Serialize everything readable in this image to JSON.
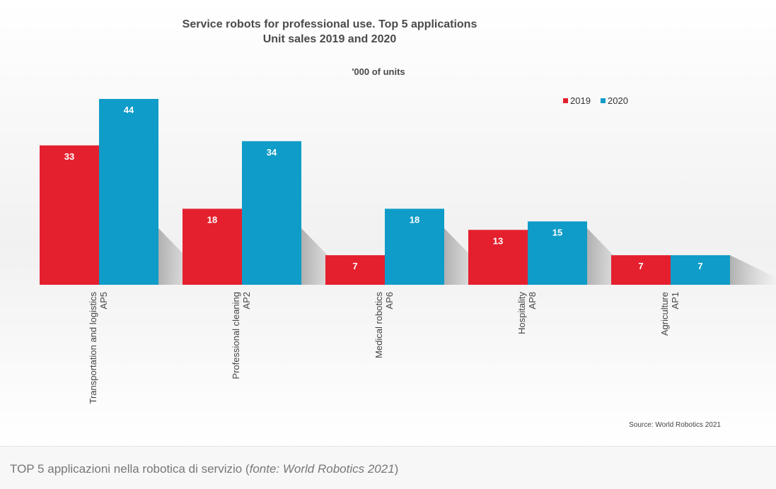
{
  "chart_data": {
    "type": "bar",
    "title": "Service robots for professional use. Top 5 applications",
    "subtitle": "Unit sales 2019 and 2020",
    "unit_label": "'000 of units",
    "categories": [
      [
        "Transportation and logistics",
        "AP5"
      ],
      [
        "Professional cleaning",
        "AP2"
      ],
      [
        "Medical robotics",
        "AP6"
      ],
      [
        "Hospitality",
        "AP8"
      ],
      [
        "Agriculture",
        "AP1"
      ]
    ],
    "series": [
      {
        "name": "2019",
        "color": "#e4202e",
        "values": [
          33,
          18,
          7,
          13,
          7
        ]
      },
      {
        "name": "2020",
        "color": "#0f9cc8",
        "values": [
          44,
          34,
          18,
          15,
          7
        ]
      }
    ],
    "ylim": [
      0,
      44
    ],
    "legend_position": "top-right",
    "grid": false,
    "source": "Source: World Robotics 2021"
  },
  "caption": {
    "prefix": "TOP 5 applicazioni nella robotica di servizio (",
    "source_italic": "fonte: World Robotics 2021",
    "suffix": ")"
  }
}
